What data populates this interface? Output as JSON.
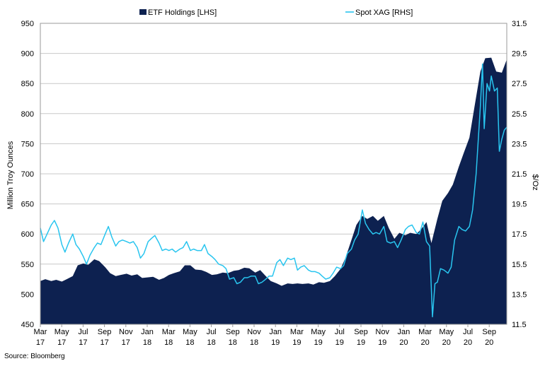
{
  "chart_data": {
    "type": "area",
    "x_ticks": [
      "Mar 17",
      "May 17",
      "Jul 17",
      "Sep 17",
      "Nov 17",
      "Jan 18",
      "Mar 18",
      "May 18",
      "Jul 18",
      "Sep 18",
      "Nov 18",
      "Jan 19",
      "Mar 19",
      "May 19",
      "Jul 19",
      "Sep 19",
      "Nov 19",
      "Jan 20",
      "Mar 20",
      "May 20",
      "Jul 20",
      "Sep 20"
    ],
    "x_start": "2017-03-01",
    "x_end": "2020-10-15",
    "left_axis": {
      "label": "Million Troy  Ounces",
      "min": 450,
      "max": 950,
      "step": 50,
      "ticks": [
        "950",
        "900",
        "850",
        "800",
        "750",
        "700",
        "650",
        "600",
        "550",
        "500",
        "450"
      ]
    },
    "right_axis": {
      "label": "$/Oz",
      "min": 11.5,
      "max": 31.5,
      "step": 2,
      "ticks": [
        "31.5",
        "29.5",
        "27.5",
        "25.5",
        "23.5",
        "21.5",
        "19.5",
        "17.5",
        "15.5",
        "13.5",
        "11.5"
      ]
    },
    "grid": "horizontal",
    "legend_position": "top",
    "series": [
      {
        "name": "ETF Holdings [LHS]",
        "axis": "left",
        "style": "area",
        "color": "#0d2150",
        "points": [
          [
            "2017-03-01",
            522
          ],
          [
            "2017-03-15",
            525
          ],
          [
            "2017-04-01",
            522
          ],
          [
            "2017-04-15",
            524
          ],
          [
            "2017-05-01",
            521
          ],
          [
            "2017-05-15",
            525
          ],
          [
            "2017-06-01",
            530
          ],
          [
            "2017-06-15",
            548
          ],
          [
            "2017-07-01",
            551
          ],
          [
            "2017-07-15",
            549
          ],
          [
            "2017-08-01",
            558
          ],
          [
            "2017-08-15",
            555
          ],
          [
            "2017-09-01",
            545
          ],
          [
            "2017-09-15",
            535
          ],
          [
            "2017-10-01",
            530
          ],
          [
            "2017-10-15",
            532
          ],
          [
            "2017-11-01",
            534
          ],
          [
            "2017-11-15",
            531
          ],
          [
            "2017-12-01",
            533
          ],
          [
            "2017-12-15",
            527
          ],
          [
            "2018-01-01",
            528
          ],
          [
            "2018-01-15",
            529
          ],
          [
            "2018-02-01",
            524
          ],
          [
            "2018-02-15",
            527
          ],
          [
            "2018-03-01",
            532
          ],
          [
            "2018-03-15",
            535
          ],
          [
            "2018-04-01",
            538
          ],
          [
            "2018-04-15",
            548
          ],
          [
            "2018-05-01",
            548
          ],
          [
            "2018-05-15",
            541
          ],
          [
            "2018-06-01",
            540
          ],
          [
            "2018-06-15",
            537
          ],
          [
            "2018-07-01",
            532
          ],
          [
            "2018-07-15",
            533
          ],
          [
            "2018-08-01",
            536
          ],
          [
            "2018-08-15",
            535
          ],
          [
            "2018-09-01",
            539
          ],
          [
            "2018-09-15",
            540
          ],
          [
            "2018-10-01",
            544
          ],
          [
            "2018-10-15",
            543
          ],
          [
            "2018-11-01",
            536
          ],
          [
            "2018-11-15",
            540
          ],
          [
            "2018-12-01",
            530
          ],
          [
            "2018-12-15",
            522
          ],
          [
            "2019-01-01",
            518
          ],
          [
            "2019-01-15",
            514
          ],
          [
            "2019-02-01",
            518
          ],
          [
            "2019-02-15",
            517
          ],
          [
            "2019-03-01",
            518
          ],
          [
            "2019-03-15",
            517
          ],
          [
            "2019-04-01",
            518
          ],
          [
            "2019-04-15",
            516
          ],
          [
            "2019-05-01",
            520
          ],
          [
            "2019-05-15",
            519
          ],
          [
            "2019-06-01",
            522
          ],
          [
            "2019-06-15",
            530
          ],
          [
            "2019-07-01",
            542
          ],
          [
            "2019-07-15",
            560
          ],
          [
            "2019-08-01",
            590
          ],
          [
            "2019-08-15",
            615
          ],
          [
            "2019-09-01",
            630
          ],
          [
            "2019-09-15",
            625
          ],
          [
            "2019-10-01",
            630
          ],
          [
            "2019-10-15",
            622
          ],
          [
            "2019-11-01",
            630
          ],
          [
            "2019-11-15",
            610
          ],
          [
            "2019-12-01",
            592
          ],
          [
            "2019-12-15",
            602
          ],
          [
            "2020-01-01",
            598
          ],
          [
            "2020-01-15",
            602
          ],
          [
            "2020-02-01",
            600
          ],
          [
            "2020-02-15",
            608
          ],
          [
            "2020-03-01",
            620
          ],
          [
            "2020-03-15",
            585
          ],
          [
            "2020-04-01",
            625
          ],
          [
            "2020-04-15",
            655
          ],
          [
            "2020-05-01",
            668
          ],
          [
            "2020-05-15",
            682
          ],
          [
            "2020-06-01",
            712
          ],
          [
            "2020-06-15",
            735
          ],
          [
            "2020-07-01",
            760
          ],
          [
            "2020-07-15",
            810
          ],
          [
            "2020-08-01",
            870
          ],
          [
            "2020-08-15",
            892
          ],
          [
            "2020-09-01",
            893
          ],
          [
            "2020-09-15",
            870
          ],
          [
            "2020-10-01",
            868
          ],
          [
            "2020-10-15",
            890
          ]
        ]
      },
      {
        "name": "Spot XAG [RHS]",
        "axis": "right",
        "style": "line",
        "color": "#29c5ef",
        "points": [
          [
            "2017-03-01",
            17.9
          ],
          [
            "2017-03-10",
            17.0
          ],
          [
            "2017-03-20",
            17.5
          ],
          [
            "2017-04-01",
            18.1
          ],
          [
            "2017-04-10",
            18.4
          ],
          [
            "2017-04-20",
            17.9
          ],
          [
            "2017-05-01",
            16.8
          ],
          [
            "2017-05-10",
            16.3
          ],
          [
            "2017-05-20",
            16.9
          ],
          [
            "2017-06-01",
            17.5
          ],
          [
            "2017-06-10",
            16.8
          ],
          [
            "2017-06-20",
            16.5
          ],
          [
            "2017-07-01",
            16.0
          ],
          [
            "2017-07-10",
            15.5
          ],
          [
            "2017-07-20",
            16.1
          ],
          [
            "2017-08-01",
            16.6
          ],
          [
            "2017-08-10",
            16.9
          ],
          [
            "2017-08-20",
            16.8
          ],
          [
            "2017-09-01",
            17.5
          ],
          [
            "2017-09-10",
            18.0
          ],
          [
            "2017-09-20",
            17.3
          ],
          [
            "2017-10-01",
            16.7
          ],
          [
            "2017-10-10",
            17.0
          ],
          [
            "2017-10-20",
            17.1
          ],
          [
            "2017-11-01",
            17.0
          ],
          [
            "2017-11-10",
            16.9
          ],
          [
            "2017-11-20",
            17.0
          ],
          [
            "2017-12-01",
            16.6
          ],
          [
            "2017-12-10",
            15.9
          ],
          [
            "2017-12-20",
            16.2
          ],
          [
            "2018-01-01",
            17.0
          ],
          [
            "2018-01-10",
            17.2
          ],
          [
            "2018-01-20",
            17.4
          ],
          [
            "2018-02-01",
            16.9
          ],
          [
            "2018-02-10",
            16.4
          ],
          [
            "2018-02-20",
            16.5
          ],
          [
            "2018-03-01",
            16.4
          ],
          [
            "2018-03-10",
            16.5
          ],
          [
            "2018-03-20",
            16.3
          ],
          [
            "2018-04-01",
            16.5
          ],
          [
            "2018-04-10",
            16.6
          ],
          [
            "2018-04-20",
            17.0
          ],
          [
            "2018-05-01",
            16.4
          ],
          [
            "2018-05-10",
            16.5
          ],
          [
            "2018-05-20",
            16.4
          ],
          [
            "2018-06-01",
            16.4
          ],
          [
            "2018-06-10",
            16.8
          ],
          [
            "2018-06-20",
            16.2
          ],
          [
            "2018-07-01",
            16.0
          ],
          [
            "2018-07-10",
            15.8
          ],
          [
            "2018-07-20",
            15.5
          ],
          [
            "2018-08-01",
            15.4
          ],
          [
            "2018-08-10",
            15.2
          ],
          [
            "2018-08-20",
            14.5
          ],
          [
            "2018-09-01",
            14.6
          ],
          [
            "2018-09-10",
            14.2
          ],
          [
            "2018-09-20",
            14.3
          ],
          [
            "2018-10-01",
            14.6
          ],
          [
            "2018-10-10",
            14.6
          ],
          [
            "2018-10-20",
            14.7
          ],
          [
            "2018-11-01",
            14.7
          ],
          [
            "2018-11-10",
            14.2
          ],
          [
            "2018-11-20",
            14.3
          ],
          [
            "2018-12-01",
            14.5
          ],
          [
            "2018-12-10",
            14.7
          ],
          [
            "2018-12-20",
            14.7
          ],
          [
            "2019-01-01",
            15.6
          ],
          [
            "2019-01-10",
            15.8
          ],
          [
            "2019-01-20",
            15.4
          ],
          [
            "2019-02-01",
            15.9
          ],
          [
            "2019-02-10",
            15.8
          ],
          [
            "2019-02-20",
            15.9
          ],
          [
            "2019-03-01",
            15.1
          ],
          [
            "2019-03-10",
            15.3
          ],
          [
            "2019-03-20",
            15.4
          ],
          [
            "2019-04-01",
            15.1
          ],
          [
            "2019-04-10",
            15.0
          ],
          [
            "2019-04-20",
            15.0
          ],
          [
            "2019-05-01",
            14.9
          ],
          [
            "2019-05-10",
            14.7
          ],
          [
            "2019-05-20",
            14.5
          ],
          [
            "2019-06-01",
            14.6
          ],
          [
            "2019-06-10",
            14.9
          ],
          [
            "2019-06-20",
            15.3
          ],
          [
            "2019-07-01",
            15.2
          ],
          [
            "2019-07-10",
            15.4
          ],
          [
            "2019-07-20",
            16.2
          ],
          [
            "2019-08-01",
            16.5
          ],
          [
            "2019-08-10",
            17.1
          ],
          [
            "2019-08-20",
            17.5
          ],
          [
            "2019-09-01",
            19.1
          ],
          [
            "2019-09-10",
            18.2
          ],
          [
            "2019-09-20",
            17.8
          ],
          [
            "2019-10-01",
            17.5
          ],
          [
            "2019-10-10",
            17.6
          ],
          [
            "2019-10-20",
            17.5
          ],
          [
            "2019-11-01",
            18.0
          ],
          [
            "2019-11-10",
            17.0
          ],
          [
            "2019-11-20",
            16.9
          ],
          [
            "2019-12-01",
            17.0
          ],
          [
            "2019-12-10",
            16.6
          ],
          [
            "2019-12-20",
            17.1
          ],
          [
            "2020-01-01",
            17.8
          ],
          [
            "2020-01-10",
            18.0
          ],
          [
            "2020-01-20",
            18.1
          ],
          [
            "2020-02-01",
            17.6
          ],
          [
            "2020-02-10",
            17.5
          ],
          [
            "2020-02-20",
            18.3
          ],
          [
            "2020-03-01",
            17.0
          ],
          [
            "2020-03-10",
            16.7
          ],
          [
            "2020-03-18",
            12.0
          ],
          [
            "2020-03-25",
            14.2
          ],
          [
            "2020-04-01",
            14.3
          ],
          [
            "2020-04-10",
            15.2
          ],
          [
            "2020-04-20",
            15.1
          ],
          [
            "2020-05-01",
            14.9
          ],
          [
            "2020-05-10",
            15.3
          ],
          [
            "2020-05-20",
            17.1
          ],
          [
            "2020-06-01",
            18.0
          ],
          [
            "2020-06-10",
            17.8
          ],
          [
            "2020-06-20",
            17.7
          ],
          [
            "2020-07-01",
            18.0
          ],
          [
            "2020-07-10",
            19.1
          ],
          [
            "2020-07-20",
            21.5
          ],
          [
            "2020-08-01",
            26.0
          ],
          [
            "2020-08-07",
            28.8
          ],
          [
            "2020-08-12",
            24.5
          ],
          [
            "2020-08-20",
            27.5
          ],
          [
            "2020-08-27",
            27.0
          ],
          [
            "2020-09-01",
            28.0
          ],
          [
            "2020-09-10",
            27.0
          ],
          [
            "2020-09-18",
            27.2
          ],
          [
            "2020-09-24",
            23.0
          ],
          [
            "2020-10-01",
            23.8
          ],
          [
            "2020-10-08",
            24.4
          ],
          [
            "2020-10-15",
            24.6
          ]
        ]
      }
    ]
  },
  "source_text": "Source: Bloomberg"
}
